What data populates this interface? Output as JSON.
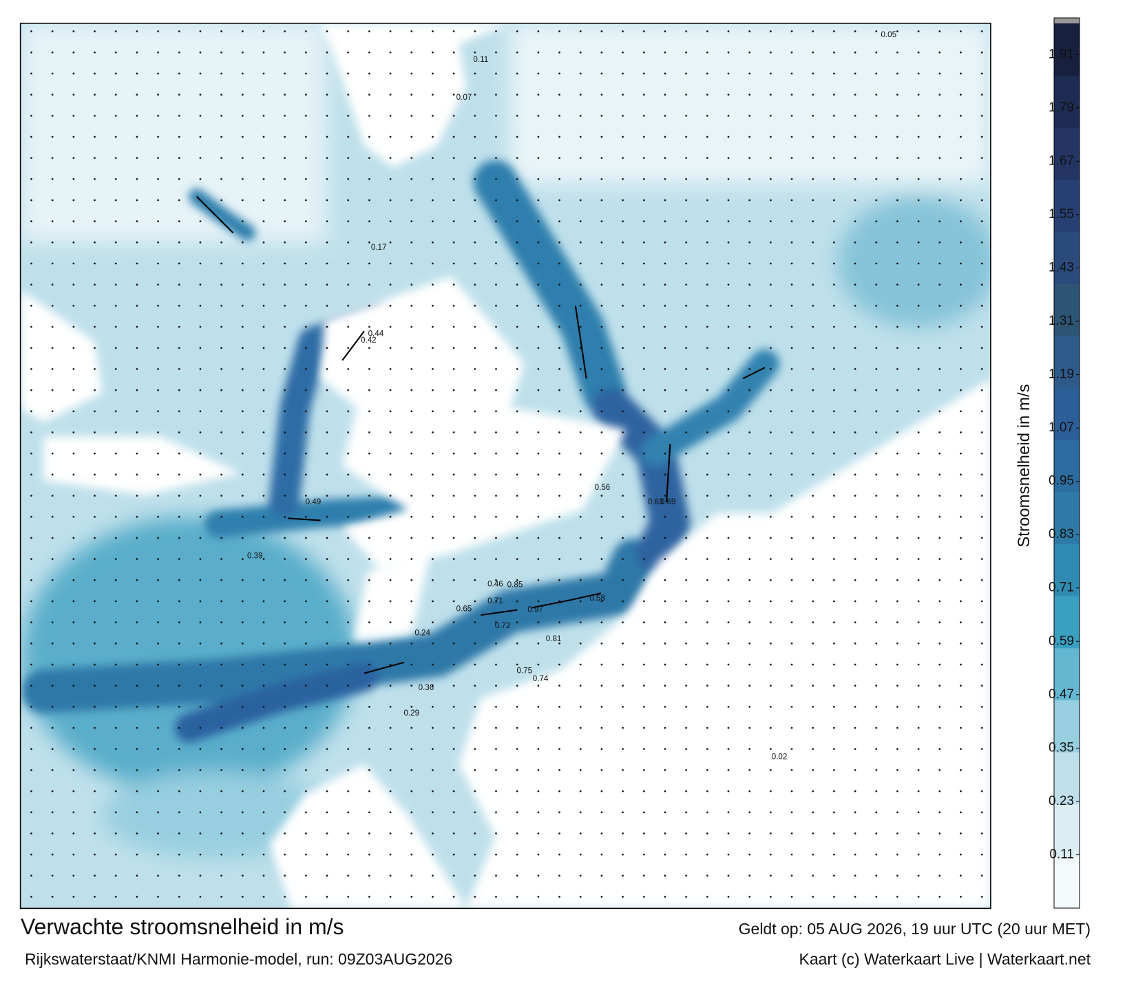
{
  "map": {
    "labels": [
      "0.85",
      "0.97",
      "0.75",
      "0.81",
      "0.72",
      "0.71",
      "0.74",
      "0.58",
      "0.65",
      "0.46",
      "0.44",
      "0.42",
      "0.36",
      "0.29",
      "0.24",
      "0.17",
      "0.11",
      "0.07",
      "0.05",
      "0.02",
      "0.63",
      "0.69",
      "0.56",
      "0.49",
      "0.39"
    ]
  },
  "legend": {
    "label": "Stroomsnelheid in m/s",
    "lim": [
      -0.01,
      1.98
    ],
    "ticks": [
      0.11,
      0.23,
      0.35,
      0.47,
      0.59,
      0.71,
      0.83,
      0.95,
      1.07,
      1.19,
      1.31,
      1.43,
      1.55,
      1.67,
      1.79,
      1.91
    ],
    "colors": [
      "#f4f9fb",
      "#dcedf3",
      "#bfe0eb",
      "#98cfe0",
      "#63b7d1",
      "#3aa0c2",
      "#2f8bb2",
      "#2e7aa6",
      "#2d6ca0",
      "#2c5f98",
      "#2d5a8a",
      "#2e5474",
      "#2b4a7c",
      "#283f73",
      "#243565",
      "#1e2b53",
      "#18203f"
    ]
  },
  "footer": {
    "title": "Verwachte stroomsnelheid in m/s",
    "source": "Rijkswaterstaat/KNMI Harmonie-model, run: 09Z03AUG2026",
    "valid": "Geldt op: 05 AUG 2026, 19 uur UTC (20 uur MET)",
    "credit": "Kaart (c) Waterkaart Live | Waterkaart.net"
  }
}
